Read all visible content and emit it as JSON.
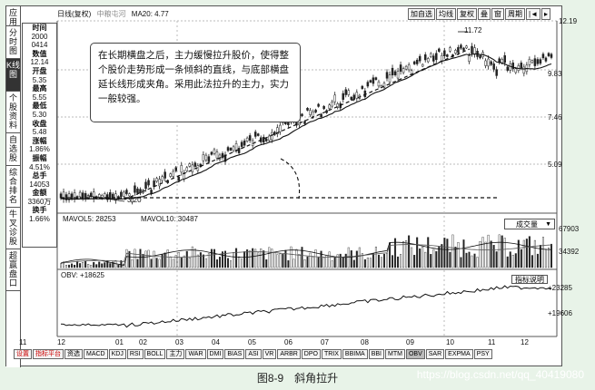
{
  "header": {
    "title": "日线(复权)",
    "subtitle": "中粮屯河",
    "ma20": "MA20: 4.77",
    "buttons": [
      "加自选",
      "均线",
      "复权",
      "叠",
      "窗",
      "周期",
      "|◄",
      "▸"
    ]
  },
  "left_tabs": [
    "应用",
    "分时图",
    "K线图",
    "个股资料",
    "自选股",
    "综合排名",
    "牛叉诊股",
    "超赢盘口"
  ],
  "info_panel": [
    {
      "label": "时间",
      "value": "2000"
    },
    {
      "label": "",
      "value": "0414"
    },
    {
      "label": "数值",
      "value": "12.14"
    },
    {
      "label": "开盘",
      "value": "5.35"
    },
    {
      "label": "最高",
      "value": "5.55"
    },
    {
      "label": "最低",
      "value": "5.30"
    },
    {
      "label": "收盘",
      "value": "5.48"
    },
    {
      "label": "涨幅",
      "value": "1.86%"
    },
    {
      "label": "振幅",
      "value": "4.51%"
    },
    {
      "label": "总手",
      "value": "14053"
    },
    {
      "label": "金额",
      "value": "3360万"
    },
    {
      "label": "换手",
      "value": "1.66%"
    }
  ],
  "price_axis": [
    "12.19",
    "9.83",
    "7.46",
    "5.09"
  ],
  "annotations": {
    "high": "11.72",
    "low": "3.20"
  },
  "callout_text": "在长期横盘之后，主力缓慢拉升股价，使得整个股价走势形成一条倾斜的直线，与底部横盘延长线形成夹角。采用此法拉升的主力，实力一般较强。",
  "volume": {
    "mavol5": "MAVOL5: 28253",
    "mavol10": "MAVOL10: 30487",
    "axis": [
      "67903",
      "34392"
    ],
    "selector": "成交量"
  },
  "obv": {
    "label": "OBV: +18625",
    "axis": [
      "+23285",
      "+19606"
    ],
    "button": "指标说明"
  },
  "x_axis": [
    "11",
    "12",
    "01",
    "02",
    "03",
    "04",
    "05",
    "06",
    "07",
    "08",
    "09",
    "10",
    "11",
    "12"
  ],
  "indicator_tabs": [
    "设置",
    "指标平台",
    "资选",
    "MACD",
    "KDJ",
    "RSI",
    "BOLL",
    "主力",
    "WAR",
    "DMI",
    "BIAS",
    "ASI",
    "VR",
    "ARBR",
    "DPO",
    "TRIX",
    "BBIMA",
    "BBI",
    "MTM",
    "OBV",
    "SAR",
    "EXPMA",
    "PSY"
  ],
  "caption": "图8-9　斜角拉升",
  "watermark": "https://blog.csdn.net/qq_40419080",
  "colors": {
    "background": "#e8f3e8",
    "line": "#111111",
    "frame": "#555555"
  }
}
